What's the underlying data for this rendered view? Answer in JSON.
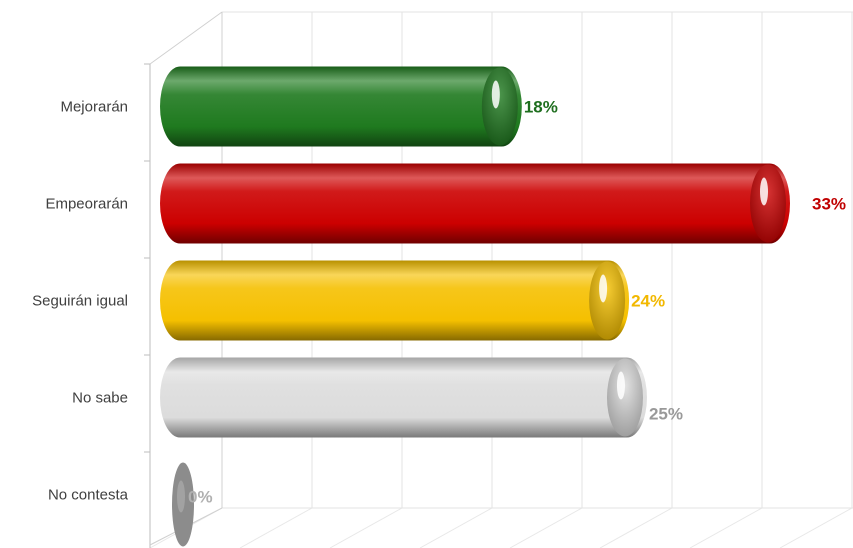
{
  "chart_data": {
    "type": "bar",
    "orientation": "horizontal",
    "style": "3d-cylinder",
    "categories": [
      "Mejorarán",
      "Empeorarán",
      "Seguirán igual",
      "No sabe",
      "No contesta"
    ],
    "values": [
      18,
      33,
      24,
      25,
      0
    ],
    "data_labels": [
      "18%",
      "33%",
      "24%",
      "25%",
      "0%"
    ],
    "colors": [
      "#1f7a1f",
      "#cc0000",
      "#f5c000",
      "#dcdcdc",
      "#8c8c8c"
    ],
    "label_colors": [
      "#1e6e1e",
      "#c00000",
      "#f2b800",
      "#999999",
      "#b0b0b0"
    ],
    "xlim": [
      0,
      35
    ],
    "grid": true,
    "legend": "none",
    "title": "",
    "xlabel": "",
    "ylabel": ""
  }
}
